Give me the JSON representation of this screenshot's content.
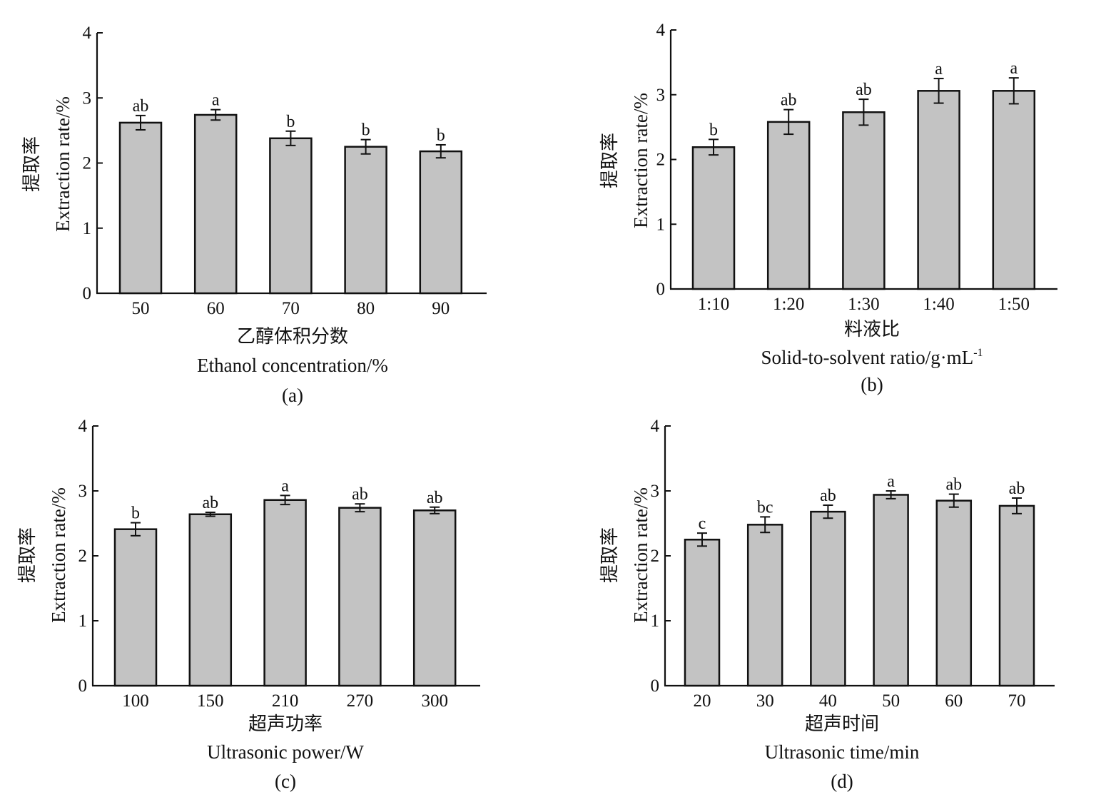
{
  "colors": {
    "bar_fill": "#c3c3c3",
    "bar_stroke": "#111111",
    "axis": "#111111"
  },
  "chart_data": [
    {
      "type": "bar",
      "panel_label": "(a)",
      "categories": [
        "50",
        "60",
        "70",
        "80",
        "90"
      ],
      "values": [
        2.62,
        2.74,
        2.38,
        2.25,
        2.18
      ],
      "errors": [
        0.11,
        0.08,
        0.11,
        0.11,
        0.1
      ],
      "significance": [
        "ab",
        "a",
        "b",
        "b",
        "b"
      ],
      "ylim": [
        0,
        4
      ],
      "yticks": [
        "0",
        "1",
        "2",
        "3",
        "4"
      ],
      "ylabel_cn": "提取率",
      "ylabel_en": "Extraction rate/%",
      "xlabel_cn": "乙醇体积分数",
      "xlabel_en": "Ethanol concentration/%",
      "xlabel_sup": ""
    },
    {
      "type": "bar",
      "panel_label": "(b)",
      "categories": [
        "1:10",
        "1:20",
        "1:30",
        "1:40",
        "1:50"
      ],
      "values": [
        2.19,
        2.58,
        2.73,
        3.06,
        3.06
      ],
      "errors": [
        0.12,
        0.19,
        0.2,
        0.19,
        0.2
      ],
      "significance": [
        "b",
        "ab",
        "ab",
        "a",
        "a"
      ],
      "ylim": [
        0,
        4
      ],
      "yticks": [
        "0",
        "1",
        "2",
        "3",
        "4"
      ],
      "ylabel_cn": "提取率",
      "ylabel_en": "Extraction rate/%",
      "xlabel_cn": "料液比",
      "xlabel_en": "Solid-to-solvent ratio/g·mL",
      "xlabel_sup": "-1"
    },
    {
      "type": "bar",
      "panel_label": "(c)",
      "categories": [
        "100",
        "150",
        "210",
        "270",
        "300"
      ],
      "values": [
        2.41,
        2.64,
        2.86,
        2.74,
        2.7
      ],
      "errors": [
        0.1,
        0.03,
        0.07,
        0.06,
        0.05
      ],
      "significance": [
        "b",
        "ab",
        "a",
        "ab",
        "ab"
      ],
      "ylim": [
        0,
        4
      ],
      "yticks": [
        "0",
        "1",
        "2",
        "3",
        "4"
      ],
      "ylabel_cn": "提取率",
      "ylabel_en": "Extraction rate/%",
      "xlabel_cn": "超声功率",
      "xlabel_en": "Ultrasonic power/W",
      "xlabel_sup": ""
    },
    {
      "type": "bar",
      "panel_label": "(d)",
      "categories": [
        "20",
        "30",
        "40",
        "50",
        "60",
        "70"
      ],
      "values": [
        2.25,
        2.48,
        2.68,
        2.94,
        2.85,
        2.77
      ],
      "errors": [
        0.1,
        0.12,
        0.1,
        0.06,
        0.1,
        0.12
      ],
      "significance": [
        "c",
        "bc",
        "ab",
        "a",
        "ab",
        "ab"
      ],
      "ylim": [
        0,
        4
      ],
      "yticks": [
        "0",
        "1",
        "2",
        "3",
        "4"
      ],
      "ylabel_cn": "提取率",
      "ylabel_en": "Extraction rate/%",
      "xlabel_cn": "超声时间",
      "xlabel_en": "Ultrasonic time/min",
      "xlabel_sup": ""
    }
  ]
}
